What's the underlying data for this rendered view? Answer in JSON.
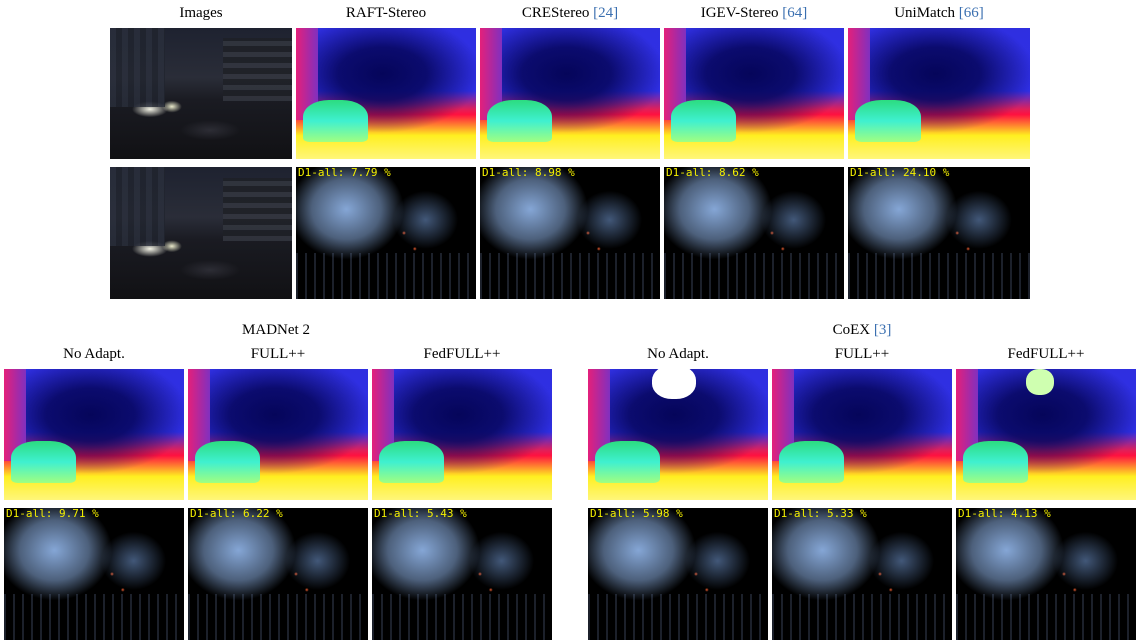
{
  "top": {
    "columns": [
      {
        "label": "Images",
        "ref": ""
      },
      {
        "label": "RAFT-Stereo",
        "ref": ""
      },
      {
        "label": "CREStereo ",
        "ref": "[24]"
      },
      {
        "label": "IGEV-Stereo ",
        "ref": "[64]"
      },
      {
        "label": "UniMatch ",
        "ref": "[66]"
      }
    ],
    "metrics": [
      "D1-all: 7.79 %",
      "D1-all: 8.98 %",
      "D1-all: 8.62 %",
      "D1-all: 24.10 %"
    ]
  },
  "bottom": {
    "madnet": {
      "group_label": "MADNet 2",
      "columns": [
        "No Adapt.",
        "FULL++",
        "FedFULL++"
      ],
      "metrics": [
        "D1-all: 9.71 %",
        "D1-all: 6.22 %",
        "D1-all: 5.43 %"
      ]
    },
    "coex": {
      "group_label": "CoEX ",
      "group_ref": "[3]",
      "columns": [
        "No Adapt.",
        "FULL++",
        "FedFULL++"
      ],
      "metrics": [
        "D1-all: 5.98 %",
        "D1-all: 5.33 %",
        "D1-all: 4.13 %"
      ]
    }
  }
}
